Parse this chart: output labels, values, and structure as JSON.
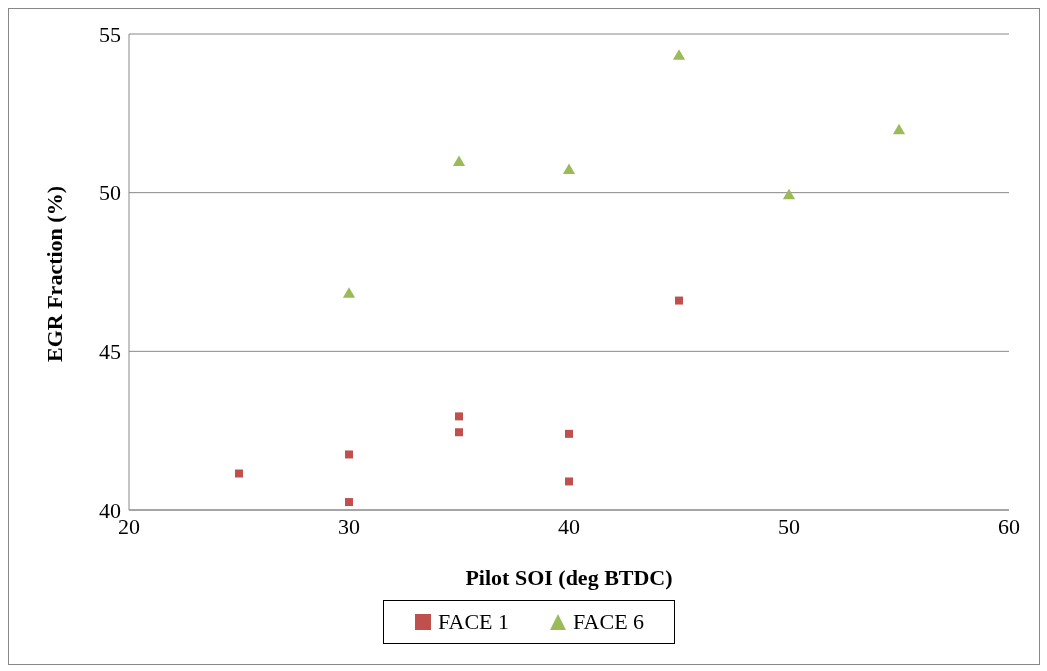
{
  "chart_data": {
    "type": "scatter",
    "xlabel": "Pilot SOI (deg BTDC)",
    "ylabel": "EGR Fraction (%)",
    "xlim": [
      20,
      60
    ],
    "xticks": [
      20,
      30,
      40,
      50,
      60
    ],
    "ylim": [
      40,
      55
    ],
    "yticks": [
      40,
      45,
      50,
      55
    ],
    "grid": "y",
    "legend": "bottom",
    "series": [
      {
        "name": "FACE 1",
        "color": "#c0504d",
        "marker": "square",
        "x": [
          25,
          30,
          30,
          35,
          35,
          40,
          40,
          45
        ],
        "values": [
          41.15,
          41.75,
          40.25,
          42.95,
          42.45,
          42.4,
          40.9,
          46.6
        ]
      },
      {
        "name": "FACE 6",
        "color": "#9bbb59",
        "marker": "triangle",
        "x": [
          30,
          35,
          40,
          45,
          50,
          55
        ],
        "values": [
          46.8,
          50.95,
          50.7,
          54.3,
          49.9,
          51.95
        ]
      }
    ]
  }
}
